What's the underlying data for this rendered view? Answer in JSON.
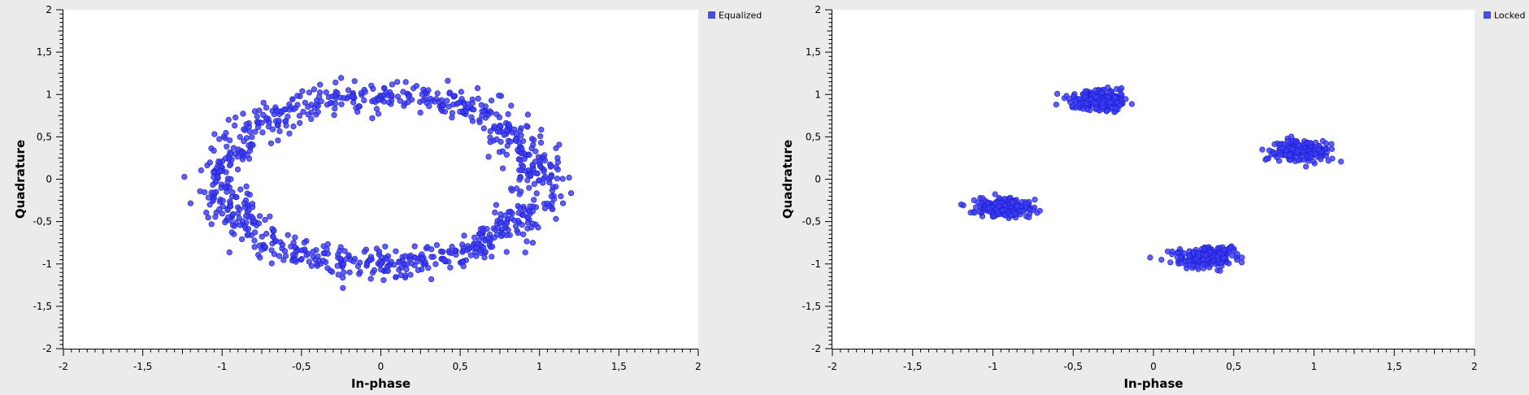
{
  "colors": {
    "background": "#ebebeb",
    "plot_area": "#ffffff",
    "point_fill": "#3c3cf0",
    "point_stroke": "#1a1ad0",
    "legend_swatch": "#4b4bea"
  },
  "chart_data": [
    {
      "type": "scatter",
      "title": "",
      "xlabel": "In-phase",
      "ylabel": "Quadrature",
      "xlim": [
        -2,
        2
      ],
      "ylim": [
        -2,
        2
      ],
      "xticks": [
        "-2",
        "-1,5",
        "-1",
        "-0,5",
        "0",
        "0,5",
        "1",
        "1,5",
        "2"
      ],
      "yticks": [
        "2",
        "1,5",
        "1",
        "0,5",
        "0",
        "-0,5",
        "-1",
        "-1,5",
        "-2"
      ],
      "grid": false,
      "legend_position": "top-right outside",
      "series": [
        {
          "name": "Equalized",
          "shape": "ring",
          "center": [
            0,
            0
          ],
          "radius_x": 1.0,
          "radius_y": 1.0,
          "spread": 0.09,
          "num_points": 900
        }
      ]
    },
    {
      "type": "scatter",
      "title": "",
      "xlabel": "In-phase",
      "ylabel": "Quadrature",
      "xlim": [
        -2,
        2
      ],
      "ylim": [
        -2,
        2
      ],
      "xticks": [
        "-2",
        "-1,5",
        "-1",
        "-0,5",
        "0",
        "0,5",
        "1",
        "1,5",
        "2"
      ],
      "yticks": [
        "2",
        "1,5",
        "1",
        "0,5",
        "0",
        "-0,5",
        "-1",
        "-1,5",
        "-2"
      ],
      "grid": false,
      "legend_position": "top-right outside",
      "series": [
        {
          "name": "Locked",
          "shape": "clusters",
          "clusters": [
            {
              "center": [
                -0.35,
                0.93
              ],
              "spread_x": 0.09,
              "spread_y": 0.06
            },
            {
              "center": [
                0.92,
                0.33
              ],
              "spread_x": 0.09,
              "spread_y": 0.06
            },
            {
              "center": [
                -0.93,
                -0.33
              ],
              "spread_x": 0.09,
              "spread_y": 0.06
            },
            {
              "center": [
                0.33,
                -0.92
              ],
              "spread_x": 0.09,
              "spread_y": 0.06
            }
          ],
          "points_per_cluster": 225
        }
      ]
    }
  ]
}
